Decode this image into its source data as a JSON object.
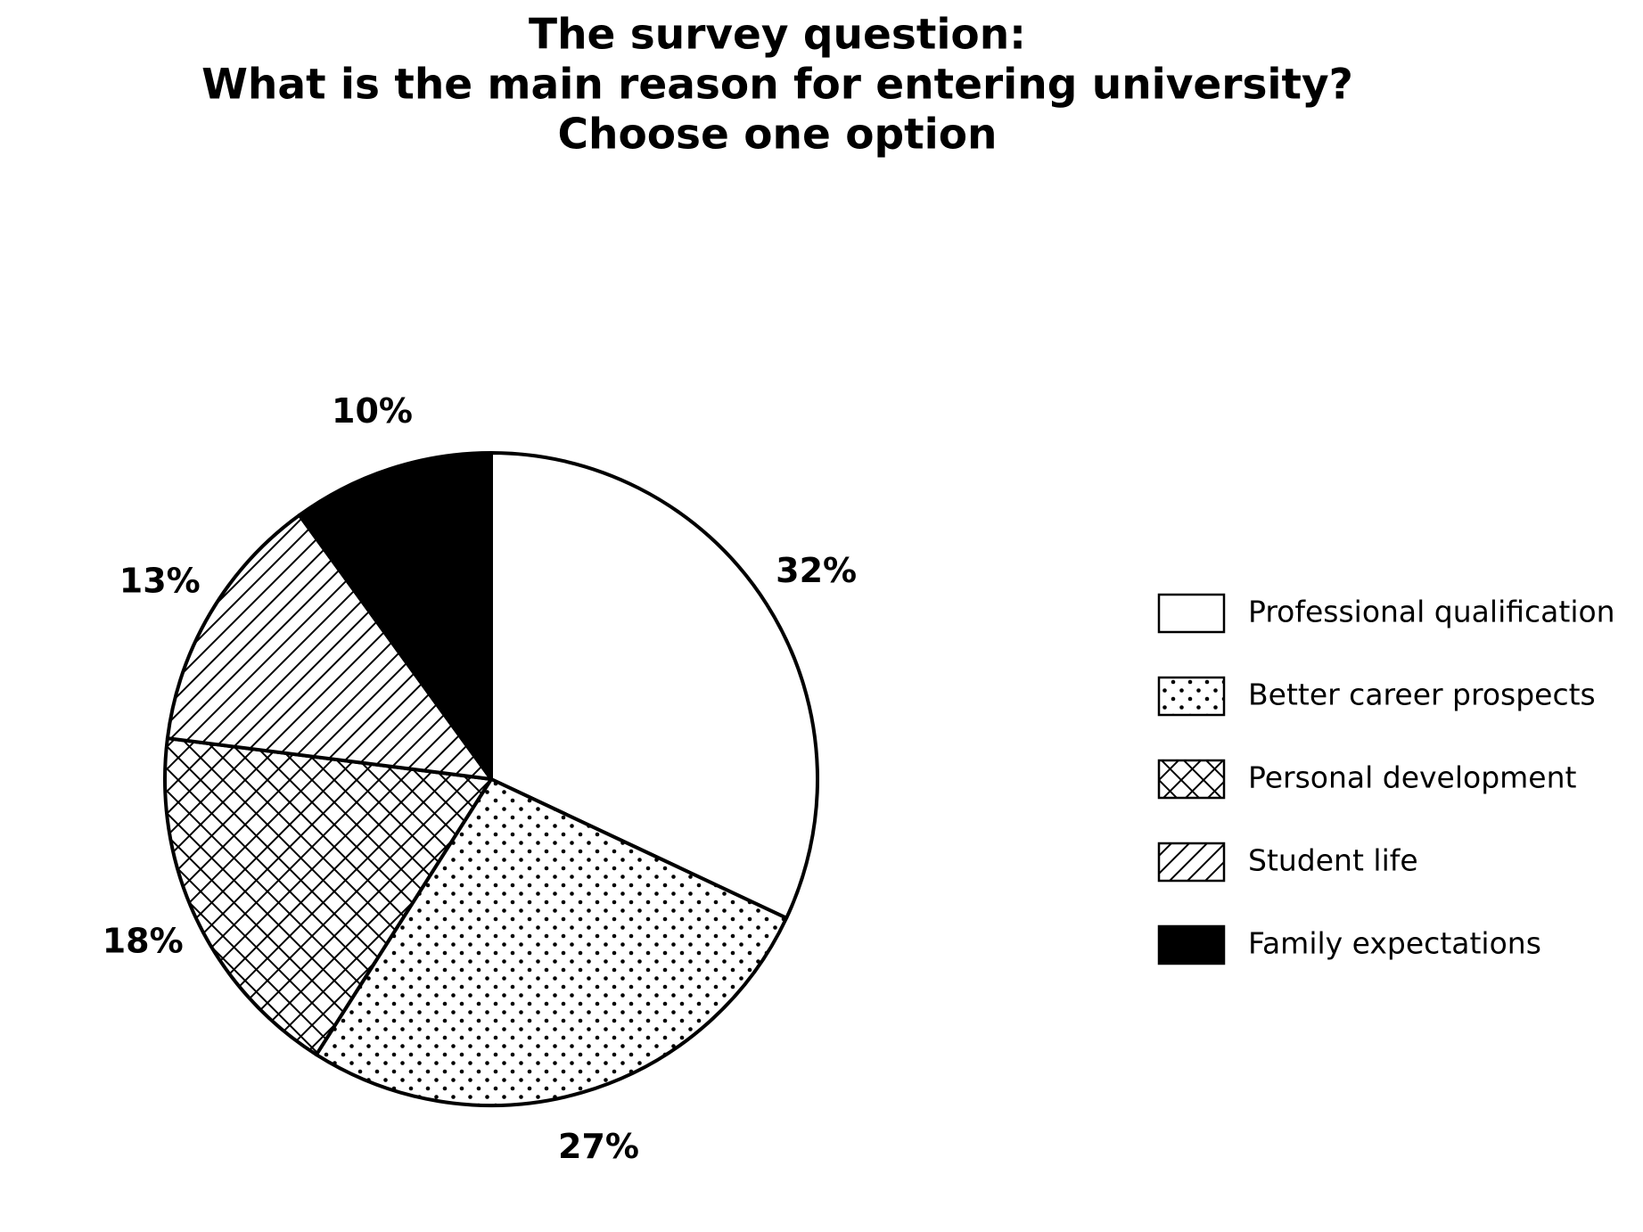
{
  "chart_data": {
    "type": "pie",
    "title": [
      "The survey question:",
      "What is the main reason for entering university?",
      "Choose one option"
    ],
    "categories": [
      "Professional qualification",
      "Better career prospects",
      "Personal development",
      "Student life",
      "Family expectations"
    ],
    "values": [
      32,
      27,
      18,
      13,
      10
    ],
    "value_labels": [
      "32%",
      "27%",
      "18%",
      "13%",
      "10%"
    ],
    "colors": [
      "#ffffff",
      "#ffffff",
      "#ffffff",
      "#ffffff",
      "#000000"
    ],
    "hatches": [
      "none",
      "dots",
      "cross",
      "diagonal",
      "none"
    ],
    "legend": "right"
  }
}
